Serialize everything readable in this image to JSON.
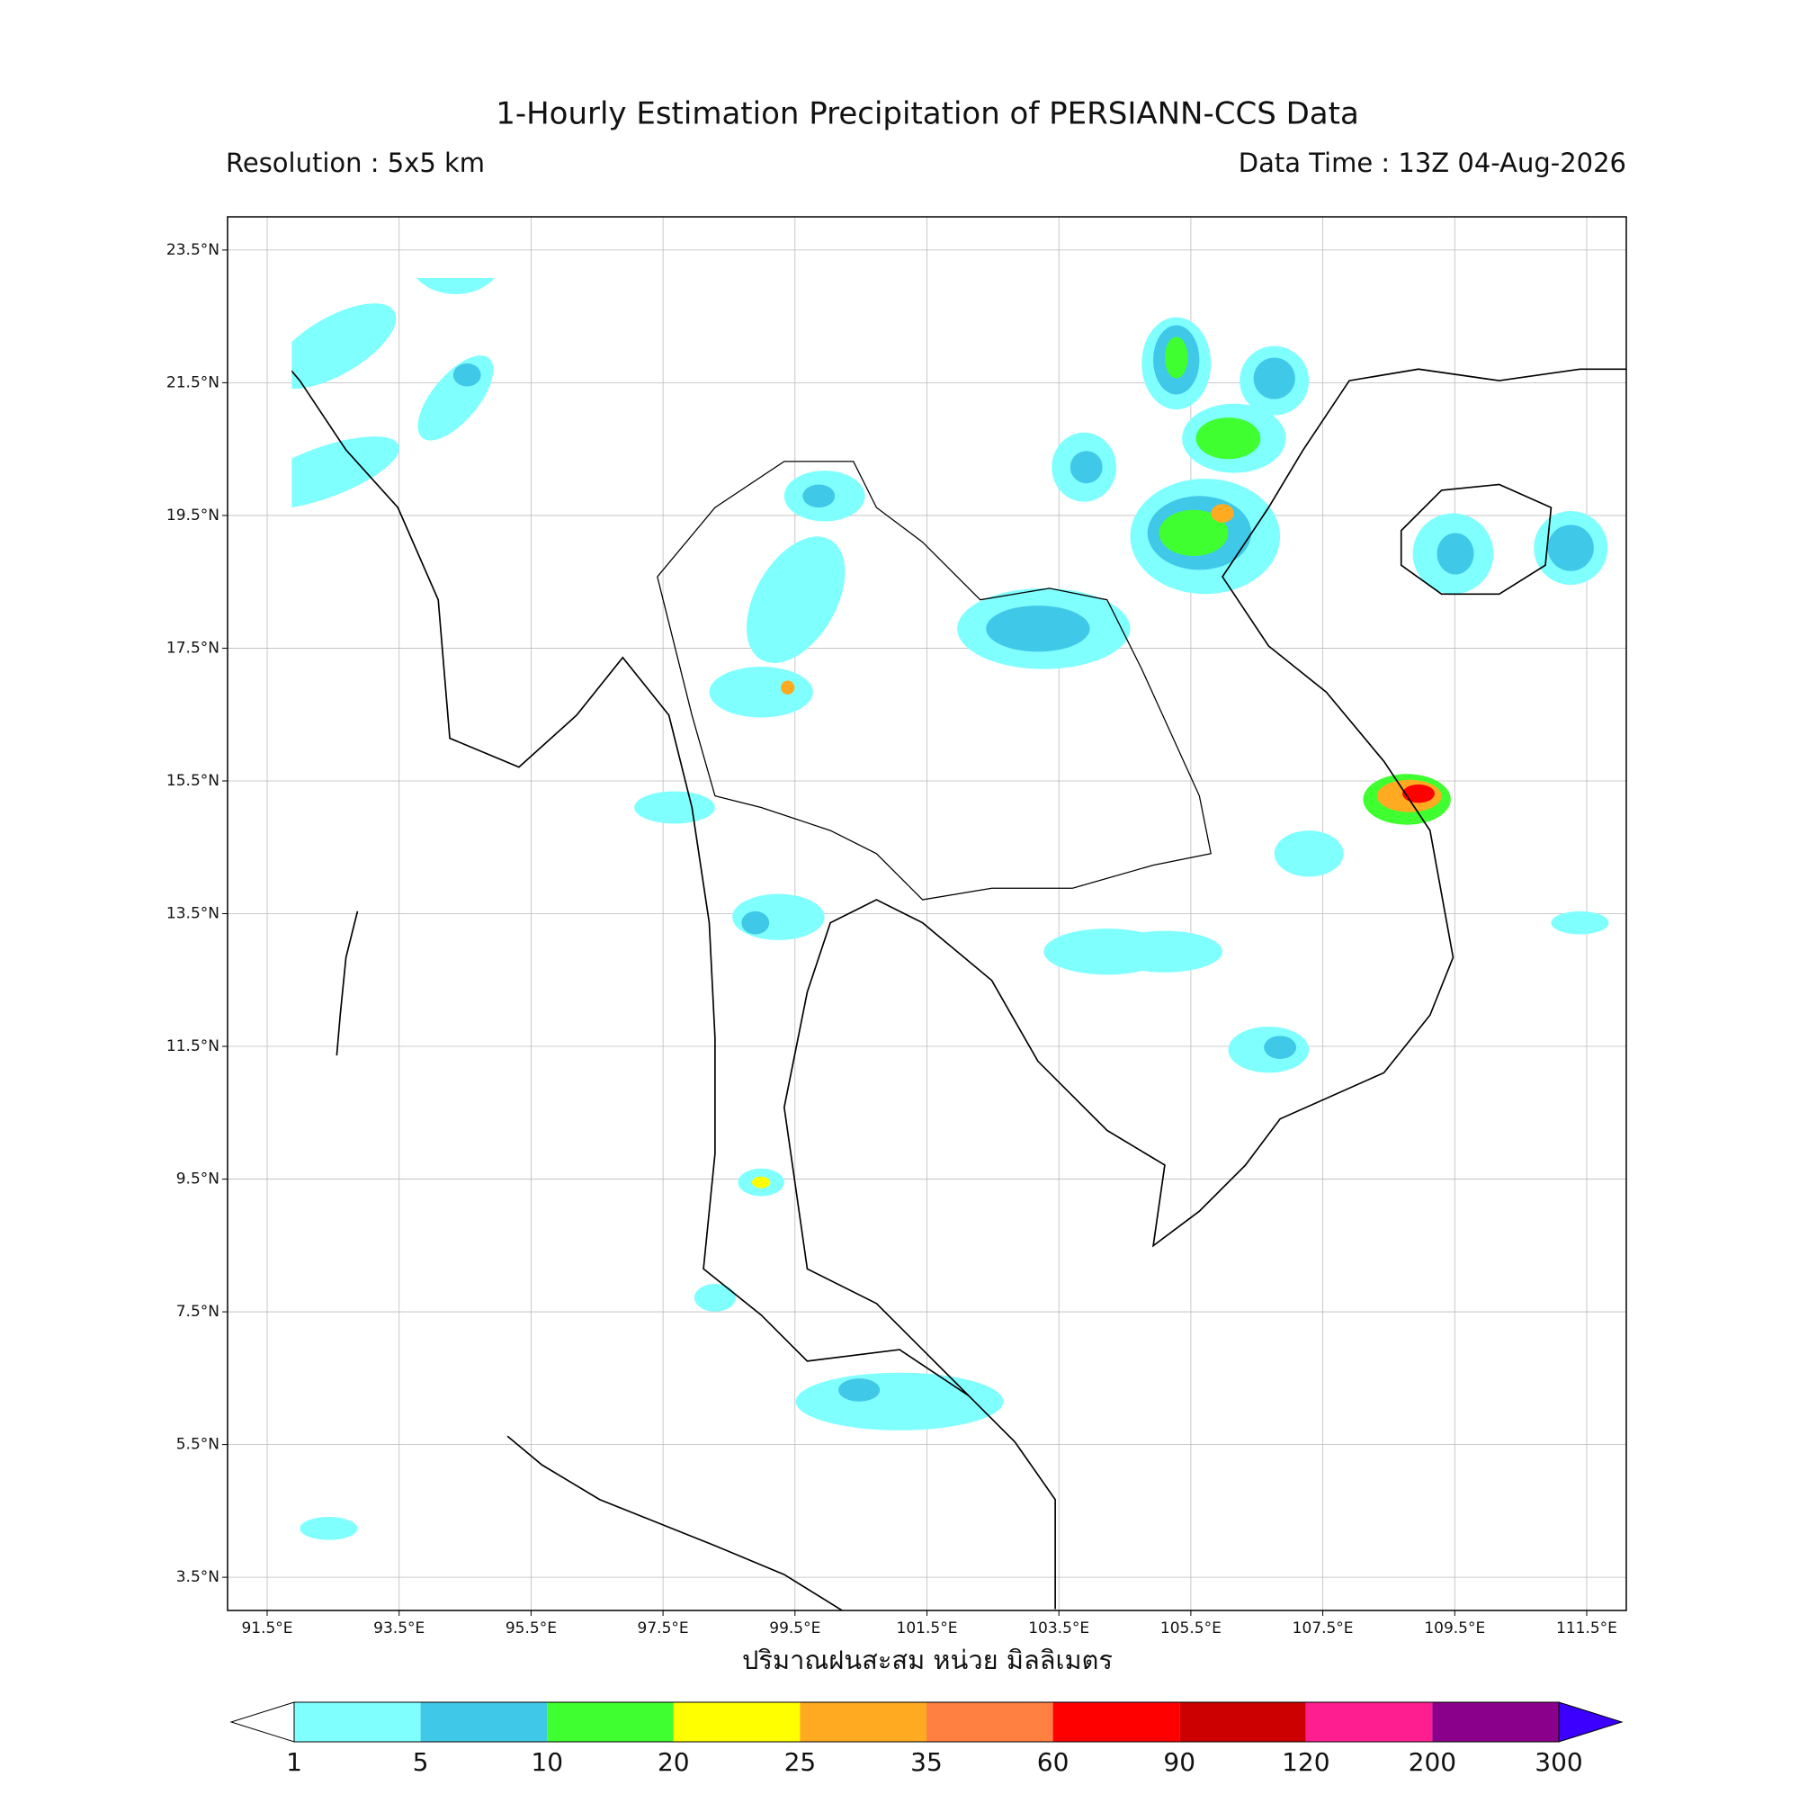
{
  "map": {
    "title": "1-Hourly Estimation Precipitation of PERSIANN-CCS Data",
    "resolution": "Resolution : 5x5 km",
    "data_time": "Data Time : 13Z 04-Aug-2026",
    "xlabel": "ปริมาณฝนสะสม หน่วย มิลลิเมตร",
    "xlim": [
      90.9,
      112.1
    ],
    "ylim": [
      3.0,
      24.0
    ],
    "xticks": [
      {
        "value": 91.5,
        "label": "91.5°E"
      },
      {
        "value": 93.5,
        "label": "93.5°E"
      },
      {
        "value": 95.5,
        "label": "95.5°E"
      },
      {
        "value": 97.5,
        "label": "97.5°E"
      },
      {
        "value": 99.5,
        "label": "99.5°E"
      },
      {
        "value": 101.5,
        "label": "101.5°E"
      },
      {
        "value": 103.5,
        "label": "103.5°E"
      },
      {
        "value": 105.5,
        "label": "105.5°E"
      },
      {
        "value": 107.5,
        "label": "107.5°E"
      },
      {
        "value": 109.5,
        "label": "109.5°E"
      },
      {
        "value": 111.5,
        "label": "111.5°E"
      }
    ],
    "yticks": [
      {
        "value": 3.5,
        "label": "3.5°N"
      },
      {
        "value": 5.5,
        "label": "5.5°N"
      },
      {
        "value": 7.5,
        "label": "7.5°N"
      },
      {
        "value": 9.5,
        "label": "9.5°N"
      },
      {
        "value": 11.5,
        "label": "11.5°N"
      },
      {
        "value": 13.5,
        "label": "13.5°N"
      },
      {
        "value": 15.5,
        "label": "15.5°N"
      },
      {
        "value": 17.5,
        "label": "17.5°N"
      },
      {
        "value": 19.5,
        "label": "19.5°N"
      },
      {
        "value": 21.5,
        "label": "21.5°N"
      },
      {
        "value": 23.5,
        "label": "23.5°N"
      }
    ],
    "grid": true,
    "colorbar": {
      "levels": [
        1,
        5,
        10,
        20,
        25,
        35,
        60,
        90,
        120,
        200,
        300
      ],
      "colors": [
        "#80ffff",
        "#40c8e8",
        "#40ff30",
        "#ffff00",
        "#ffaa20",
        "#ff8040",
        "#ff0000",
        "#cc0000",
        "#ff1e90",
        "#8b008b"
      ],
      "under_color": "#ffffff",
      "over_color": "#3b00ff"
    }
  }
}
